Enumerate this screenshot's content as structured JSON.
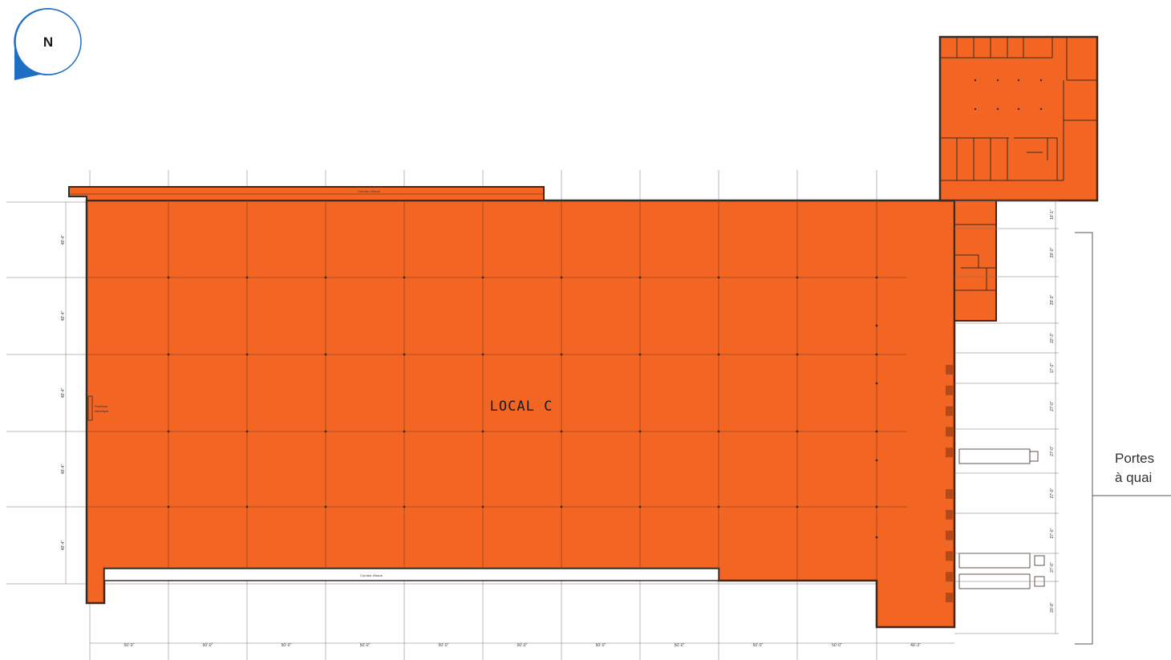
{
  "compass": {
    "label": "N",
    "accent": "#1f6fc4"
  },
  "colors": {
    "floor": "#f26522",
    "wall": "#3b2a22",
    "dock": "#b34a1b"
  },
  "room_label": "LOCAL C",
  "corridor_north": "Corridor d'issue",
  "corridor_south": "Corridor d'issue",
  "electrical_panel": [
    "Panneau",
    "électrique"
  ],
  "side_label": {
    "line1": "Portes",
    "line2": "à quai"
  },
  "bottom_dims": [
    "50'-0\"",
    "50'-0\"",
    "50'-0\"",
    "50'-0\"",
    "50'-0\"",
    "50'-0\"",
    "50'-0\"",
    "50'-0\"",
    "50'-0\"",
    "50'-0\"",
    "49'-3\""
  ],
  "left_dims": [
    "48'-4\"",
    "48'-4\"",
    "48'-4\"",
    "48'-4\"",
    "48'-4\""
  ],
  "right_dims": [
    "16'-1\"",
    "29'-0\"",
    "29'-3\"",
    "22'-3\"",
    "17'-2\"",
    "27'-0\"",
    "27'-0\"",
    "27'-0\"",
    "27'-0\"",
    "27'-0\"",
    "20'-8\""
  ],
  "dock_door_count": 11
}
